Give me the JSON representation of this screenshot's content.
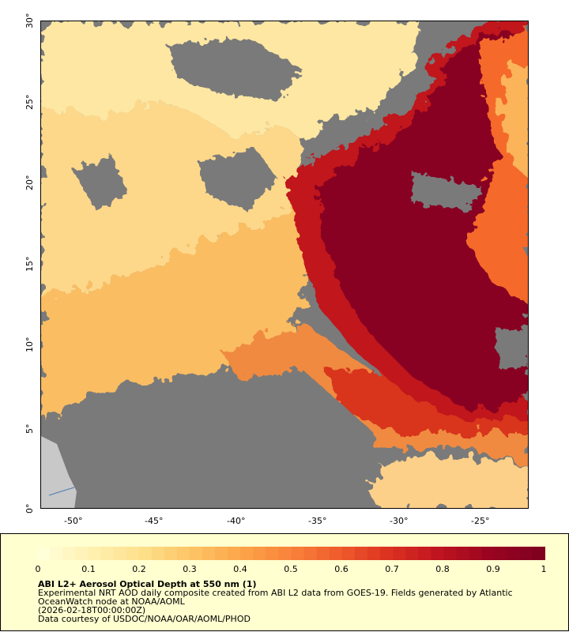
{
  "map": {
    "x_ticks": [
      "-50°",
      "-45°",
      "-40°",
      "-35°",
      "-30°",
      "-25°"
    ],
    "y_ticks": [
      "0°",
      "5°",
      "10°",
      "15°",
      "20°",
      "25°",
      "30°"
    ],
    "colors": {
      "land": "#c8c8c8",
      "no_data": "#7a7a7a",
      "coast": "#4a7ab0"
    }
  },
  "legend": {
    "ticks": [
      "0",
      "0.1",
      "0.2",
      "0.3",
      "0.4",
      "0.5",
      "0.6",
      "0.7",
      "0.8",
      "0.9",
      "1"
    ],
    "title": "ABI L2+ Aerosol Optical Depth at 550 nm (1)",
    "line1": "Experimental NRT AOD daily composite created from ABI L2 data from GOES-19. Fields generated by Atlantic",
    "line2": "OceanWatch node at NOAA/AOML",
    "line3": "(2026-02-18T00:00:00Z)",
    "line4": "Data courtesy of USDOC/NOAA/OAR/AOML/PHOD",
    "colormap": [
      "#ffffd8",
      "#fff0b0",
      "#fde08a",
      "#fdc466",
      "#fca548",
      "#f8823a",
      "#ef5a2c",
      "#da3020",
      "#be1420",
      "#9a0420",
      "#800020"
    ]
  }
}
